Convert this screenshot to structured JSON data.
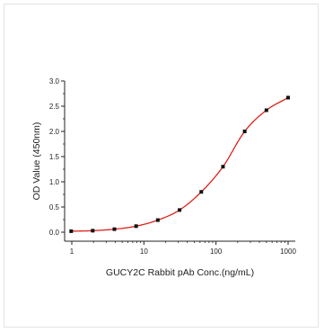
{
  "chart_data": {
    "type": "scatter",
    "title": "",
    "xlabel": "GUCY2C Rabbit pAb Conc.(ng/mL)",
    "ylabel": "OD Value (450nm)",
    "x_scale": "log",
    "xlim": [
      1,
      1000
    ],
    "ylim": [
      0,
      3.0
    ],
    "x_ticks": [
      1,
      10,
      100,
      1000
    ],
    "x_tick_labels": [
      "1",
      "10",
      "100",
      "1000"
    ],
    "y_ticks": [
      0,
      0.5,
      1.0,
      1.5,
      2.0,
      2.5,
      3.0
    ],
    "y_tick_labels": [
      "0.0",
      "0.5",
      "1.0",
      "1.5",
      "2.0",
      "2.5",
      "3.0"
    ],
    "grid": false,
    "legend": "none",
    "series": [
      {
        "x": [
          0.98,
          1.95,
          3.9,
          7.8,
          15.6,
          31.25,
          62.5,
          125,
          250,
          500,
          1000
        ],
        "y": [
          0.02,
          0.03,
          0.06,
          0.12,
          0.24,
          0.44,
          0.8,
          1.3,
          2.0,
          2.42,
          2.67
        ],
        "marker_color": "#111111",
        "fit_line_color": "#e0211b"
      }
    ]
  }
}
